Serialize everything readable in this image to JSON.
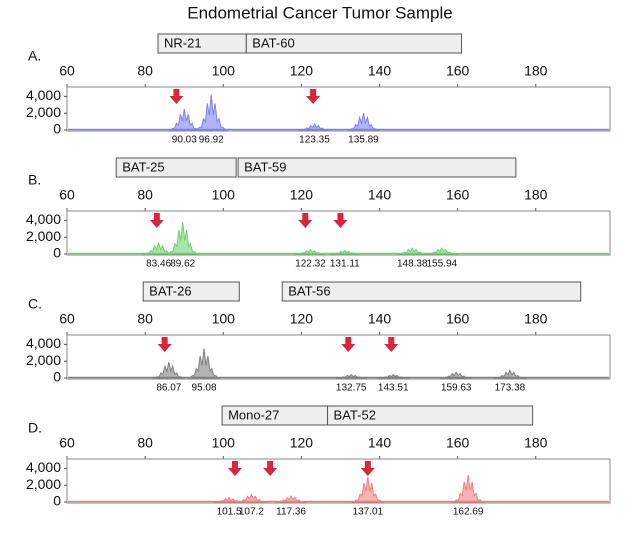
{
  "title": "Endometrial Cancer Tumor Sample",
  "chart_data": [
    {
      "type": "peaks",
      "label": "A.",
      "color": "#8080f0",
      "xlim": [
        60,
        199
      ],
      "ylim": [
        0,
        5000
      ],
      "xticks": [
        60,
        80,
        100,
        120,
        140,
        160,
        180
      ],
      "yticks": [
        0,
        {
          "value": 2000,
          "label": "2,000"
        },
        {
          "value": 4000,
          "label": "4,000"
        }
      ],
      "markers": [
        {
          "name": "NR-21",
          "start": 83.3,
          "end": 105.9
        },
        {
          "name": "BAT-60",
          "start": 105.9,
          "end": 161
        }
      ],
      "arrows": [
        88,
        123
      ],
      "x": [
        90.03,
        96.92,
        123.35,
        135.89
      ],
      "values": [
        2500,
        4200,
        700,
        2000
      ]
    },
    {
      "type": "peaks",
      "label": "B.",
      "color": "#70d070",
      "xlim": [
        60,
        199
      ],
      "ylim": [
        0,
        5000
      ],
      "xticks": [
        60,
        80,
        100,
        120,
        140,
        160,
        180
      ],
      "yticks": [
        0,
        {
          "value": 2000,
          "label": "2,000"
        },
        {
          "value": 4000,
          "label": "4,000"
        }
      ],
      "markers": [
        {
          "name": "BAT-25",
          "start": 72.6,
          "end": 103.3
        },
        {
          "name": "BAT-59",
          "start": 103.8,
          "end": 174.9
        }
      ],
      "arrows": [
        83,
        121,
        130
      ],
      "x": [
        83.46,
        89.62,
        122.32,
        131.11,
        148.38,
        155.94
      ],
      "values": [
        1300,
        3800,
        500,
        400,
        700,
        700
      ]
    },
    {
      "type": "peaks",
      "label": "C.",
      "color": "#808080",
      "xlim": [
        60,
        199
      ],
      "ylim": [
        0,
        5000
      ],
      "xticks": [
        60,
        80,
        100,
        120,
        140,
        160,
        180
      ],
      "yticks": [
        0,
        {
          "value": 2000,
          "label": "2,000"
        },
        {
          "value": 4000,
          "label": "4,000"
        }
      ],
      "markers": [
        {
          "name": "BAT-26",
          "start": 79.5,
          "end": 104.1
        },
        {
          "name": "BAT-56",
          "start": 115.1,
          "end": 191.5
        }
      ],
      "arrows": [
        85,
        132,
        143
      ],
      "x": [
        86.07,
        95.08,
        132.75,
        143.51,
        159.63,
        173.38
      ],
      "values": [
        1900,
        3500,
        400,
        400,
        700,
        900
      ]
    },
    {
      "type": "peaks",
      "label": "D.",
      "color": "#f08080",
      "xlim": [
        60,
        199
      ],
      "ylim": [
        0,
        5000
      ],
      "xticks": [
        60,
        80,
        100,
        120,
        140,
        160,
        180
      ],
      "yticks": [
        0,
        {
          "value": 2000,
          "label": "2,000"
        },
        {
          "value": 4000,
          "label": "4,000"
        }
      ],
      "markers": [
        {
          "name": "Mono-27",
          "start": 99.7,
          "end": 126.7
        },
        {
          "name": "BAT-52",
          "start": 126.7,
          "end": 179.2
        }
      ],
      "arrows": [
        103,
        112,
        137
      ],
      "x": [
        101.5,
        107.2,
        117.36,
        137.01,
        162.69
      ],
      "values": [
        500,
        900,
        700,
        3000,
        3200
      ]
    }
  ]
}
